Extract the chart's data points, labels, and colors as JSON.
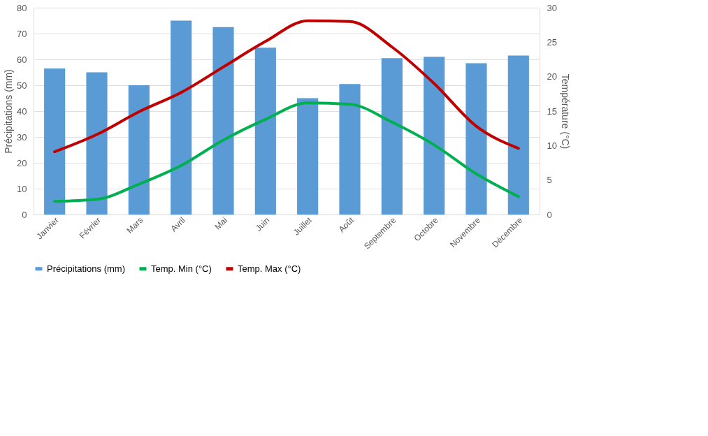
{
  "chart_data": {
    "type": "bar",
    "categories": [
      "Janvier",
      "Février",
      "Mars",
      "Avril",
      "Mai",
      "Juin",
      "Juillet",
      "Août",
      "Septembre",
      "Octobre",
      "Novembre",
      "Décembre"
    ],
    "ylabel": "Précipitations (mm)",
    "y2label": "Température (°C)",
    "ylim": [
      0,
      80
    ],
    "yticks": [
      0,
      10,
      20,
      30,
      40,
      50,
      60,
      70,
      80
    ],
    "y2lim": [
      0,
      30
    ],
    "y2ticks": [
      0,
      5,
      10,
      15,
      20,
      25,
      30
    ],
    "grid": "y",
    "legend": "bottom",
    "series": [
      {
        "name": "Précipitations (mm)",
        "color": "#5b9bd5",
        "values": [
          56.5,
          55,
          50,
          75,
          72.5,
          64.5,
          45,
          50.5,
          60.5,
          61,
          58.5,
          61.5
        ]
      },
      {
        "name": "Temp. Min (°C)",
        "type": "line",
        "axis": "y2",
        "color": "#00b050",
        "values": [
          1.9,
          2.2,
          4.4,
          7.1,
          10.8,
          13.8,
          16.2,
          16.0,
          13.4,
          10.1,
          5.9,
          2.6
        ]
      },
      {
        "name": "Temp. Max (°C)",
        "type": "line",
        "axis": "y2",
        "color": "#c00000",
        "values": [
          9.1,
          11.6,
          14.9,
          17.7,
          21.4,
          25.1,
          28.1,
          28.0,
          24.3,
          19.0,
          12.8,
          9.6
        ]
      }
    ]
  }
}
